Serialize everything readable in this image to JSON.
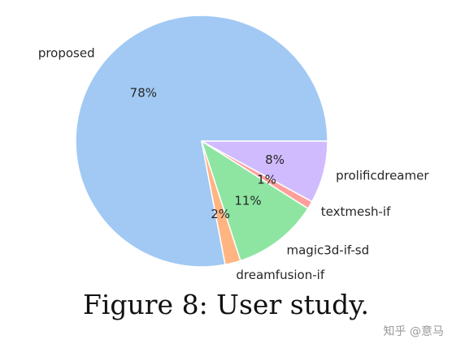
{
  "chart_data": {
    "type": "pie",
    "categories": [
      "proposed",
      "dreamfusion-if",
      "magic3d-if-sd",
      "textmesh-if",
      "prolificdreamer"
    ],
    "values": [
      78,
      2,
      11,
      1,
      8
    ],
    "percent_labels": [
      "78%",
      "2%",
      "11%",
      "1%",
      "8%"
    ],
    "colors": [
      "#a1c9f4",
      "#ffb482",
      "#8de5a1",
      "#ff9f9b",
      "#d0bbff"
    ],
    "start_angle_deg": 0,
    "direction": "counterclockwise",
    "legend": "none"
  },
  "caption": "Figure 8: User study.",
  "watermark": "知乎 @意马"
}
